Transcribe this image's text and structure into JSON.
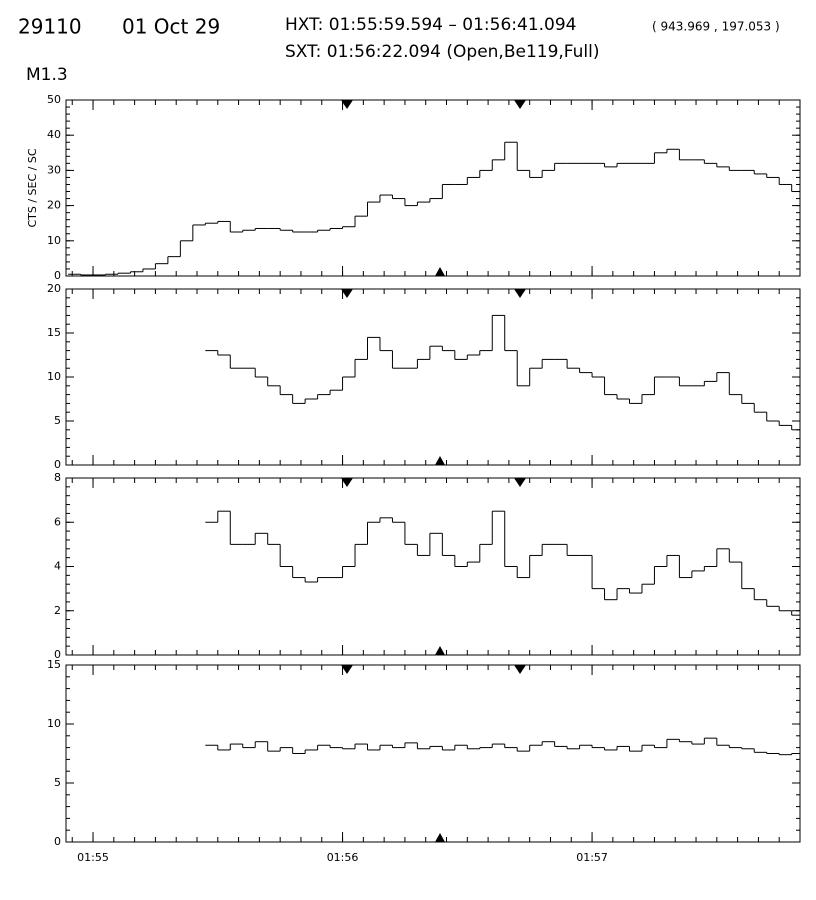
{
  "header": {
    "id": "29110",
    "date": "01 Oct 29",
    "hxt": "HXT: 01:55:59.594 – 01:56:41.094",
    "coords": "( 943.969 , 197.053 )",
    "sxt": "SXT: 01:56:22.094 (Open,Be119,Full)",
    "class": "M1.3"
  },
  "chart_data": {
    "type": "step",
    "ylabel": "CTS / SEC / SC",
    "x": [
      -6,
      -3,
      0,
      3,
      6,
      9,
      12,
      15,
      18,
      21,
      24,
      27,
      30,
      33,
      36,
      39,
      42,
      45,
      48,
      51,
      54,
      57,
      60,
      63,
      66,
      69,
      72,
      75,
      78,
      81,
      84,
      87,
      90,
      93,
      96,
      99,
      102,
      105,
      108,
      111,
      114,
      117,
      120,
      123,
      126,
      129,
      132,
      135,
      138,
      141,
      144,
      147,
      150,
      153,
      156,
      159,
      162,
      165,
      168
    ],
    "xlim": [
      -6.5,
      170
    ],
    "xticks": [
      {
        "value": 0,
        "label": "01:55"
      },
      {
        "value": 60,
        "label": "01:56"
      },
      {
        "value": 120,
        "label": "01:57"
      }
    ],
    "series": [
      {
        "color": "#000000",
        "ylim": [
          0,
          50
        ],
        "yticks": [
          0,
          10,
          20,
          30,
          40,
          50
        ],
        "values": [
          0.5,
          0.3,
          0.3,
          0.5,
          0.8,
          1.2,
          2,
          3.5,
          5.5,
          10,
          14.5,
          15,
          15.5,
          12.5,
          13,
          13.5,
          13.5,
          13,
          12.5,
          12.5,
          13,
          13.5,
          14,
          17,
          21,
          23,
          22,
          20,
          21,
          22,
          26,
          26,
          28,
          30,
          33,
          38,
          30,
          28,
          30,
          32,
          32,
          32,
          32,
          31,
          32,
          32,
          32,
          35,
          36,
          33,
          33,
          32,
          31,
          30,
          30,
          29,
          28,
          26,
          24
        ]
      },
      {
        "color": "#000000",
        "ylim": [
          0,
          20
        ],
        "yticks": [
          0,
          5,
          10,
          15,
          20
        ],
        "values": [
          null,
          null,
          null,
          null,
          null,
          null,
          null,
          null,
          null,
          null,
          null,
          13,
          12.5,
          11,
          11,
          10,
          9,
          8,
          7,
          7.5,
          8,
          8.5,
          10,
          12,
          14.5,
          13,
          11,
          11,
          12,
          13.5,
          13,
          12,
          12.5,
          13,
          17,
          13,
          9,
          11,
          12,
          12,
          11,
          10.5,
          10,
          8,
          7.5,
          7,
          8,
          10,
          10,
          9,
          9,
          9.5,
          10.5,
          8,
          7,
          6,
          5,
          4.5,
          4
        ]
      },
      {
        "color": "#000000",
        "ylim": [
          0,
          8
        ],
        "yticks": [
          0,
          2,
          4,
          6,
          8
        ],
        "values": [
          null,
          null,
          null,
          null,
          null,
          null,
          null,
          null,
          null,
          null,
          null,
          6,
          6.5,
          5,
          5,
          5.5,
          5,
          4,
          3.5,
          3.3,
          3.5,
          3.5,
          4,
          5,
          6,
          6.2,
          6,
          5,
          4.5,
          5.5,
          4.5,
          4,
          4.2,
          5,
          6.5,
          4,
          3.5,
          4.5,
          5,
          5,
          4.5,
          4.5,
          3,
          2.5,
          3,
          2.8,
          3.2,
          4,
          4.5,
          3.5,
          3.8,
          4,
          4.8,
          4.2,
          3,
          2.5,
          2.2,
          2,
          1.8
        ]
      },
      {
        "color": "#000000",
        "ylim": [
          0,
          15
        ],
        "yticks": [
          0,
          5,
          10,
          15
        ],
        "values": [
          null,
          null,
          null,
          null,
          null,
          null,
          null,
          null,
          null,
          null,
          null,
          8.2,
          7.8,
          8.3,
          8,
          8.5,
          7.7,
          8,
          7.5,
          7.8,
          8.2,
          8,
          7.9,
          8.3,
          7.8,
          8.2,
          8,
          8.4,
          7.9,
          8.1,
          7.8,
          8.2,
          7.9,
          8,
          8.3,
          8,
          7.7,
          8.2,
          8.5,
          8.1,
          7.9,
          8.2,
          8,
          7.8,
          8.1,
          7.7,
          8.2,
          8,
          8.7,
          8.5,
          8.3,
          8.8,
          8.2,
          8,
          7.9,
          7.6,
          7.5,
          7.4,
          7.5
        ]
      }
    ]
  }
}
